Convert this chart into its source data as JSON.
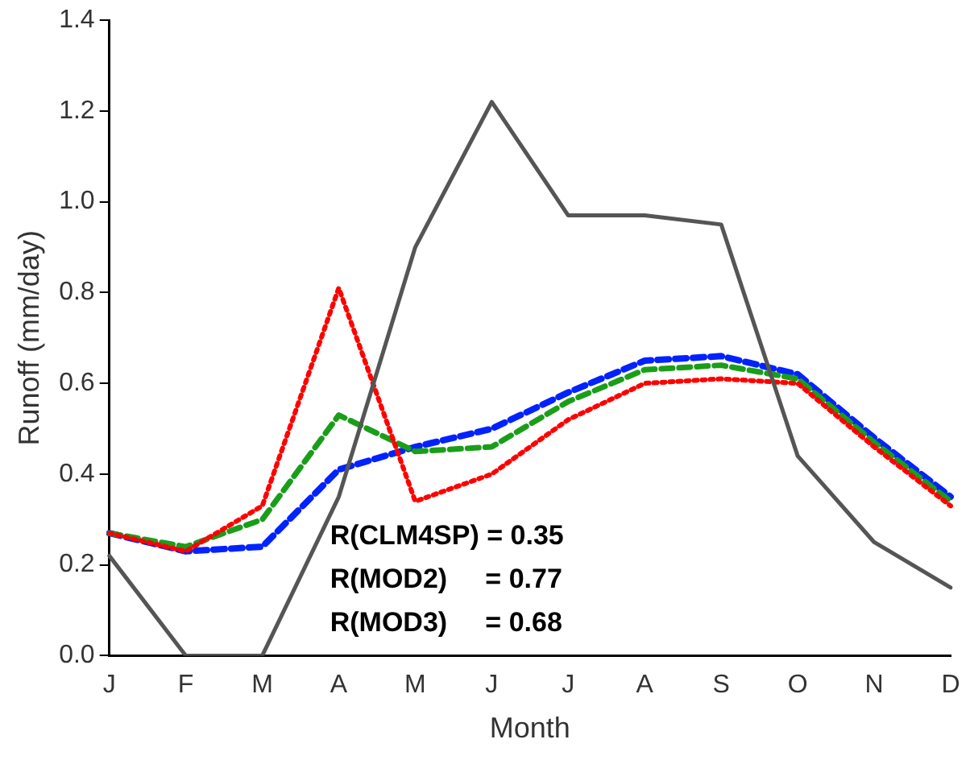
{
  "chart_data": {
    "type": "line",
    "xlabel": "Month",
    "ylabel": "Runoff (mm/day)",
    "categories": [
      "J",
      "F",
      "M",
      "A",
      "M",
      "J",
      "J",
      "A",
      "S",
      "O",
      "N",
      "D"
    ],
    "series": [
      {
        "color": "#555555",
        "line_style": "solid",
        "values": [
          0.22,
          0.0,
          0.0,
          0.35,
          0.9,
          1.22,
          0.97,
          0.97,
          0.95,
          0.44,
          0.25,
          0.15
        ]
      },
      {
        "color": "#ff0000",
        "line_style": "dotted",
        "values": [
          0.27,
          0.23,
          0.33,
          0.81,
          0.34,
          0.4,
          0.52,
          0.6,
          0.61,
          0.6,
          0.46,
          0.33
        ]
      },
      {
        "color": "#1a9e1a",
        "line_style": "dashed",
        "values": [
          0.27,
          0.24,
          0.3,
          0.53,
          0.45,
          0.46,
          0.56,
          0.63,
          0.64,
          0.61,
          0.47,
          0.34
        ]
      },
      {
        "color": "#0022ff",
        "line_style": "dashed",
        "values": [
          0.27,
          0.23,
          0.24,
          0.41,
          0.46,
          0.5,
          0.58,
          0.65,
          0.66,
          0.62,
          0.48,
          0.35
        ]
      }
    ],
    "ylim": [
      0,
      1.4
    ],
    "yticks": [
      {
        "value": 0,
        "label": "0.0"
      },
      {
        "value": 0.2,
        "label": "0.2"
      },
      {
        "value": 0.4,
        "label": "0.4"
      },
      {
        "value": 0.6,
        "label": "0.6"
      },
      {
        "value": 0.8,
        "label": "0.8"
      },
      {
        "value": 1,
        "label": "1.0"
      },
      {
        "value": 1.2,
        "label": "1.2"
      },
      {
        "value": 1.4,
        "label": "1.4"
      }
    ],
    "grid": false,
    "legend": false,
    "marker": "none",
    "annotations": [
      "R(CLM4SP) = 0.35",
      "R(MOD2)     = 0.77",
      "R(MOD3)     = 0.68"
    ]
  }
}
